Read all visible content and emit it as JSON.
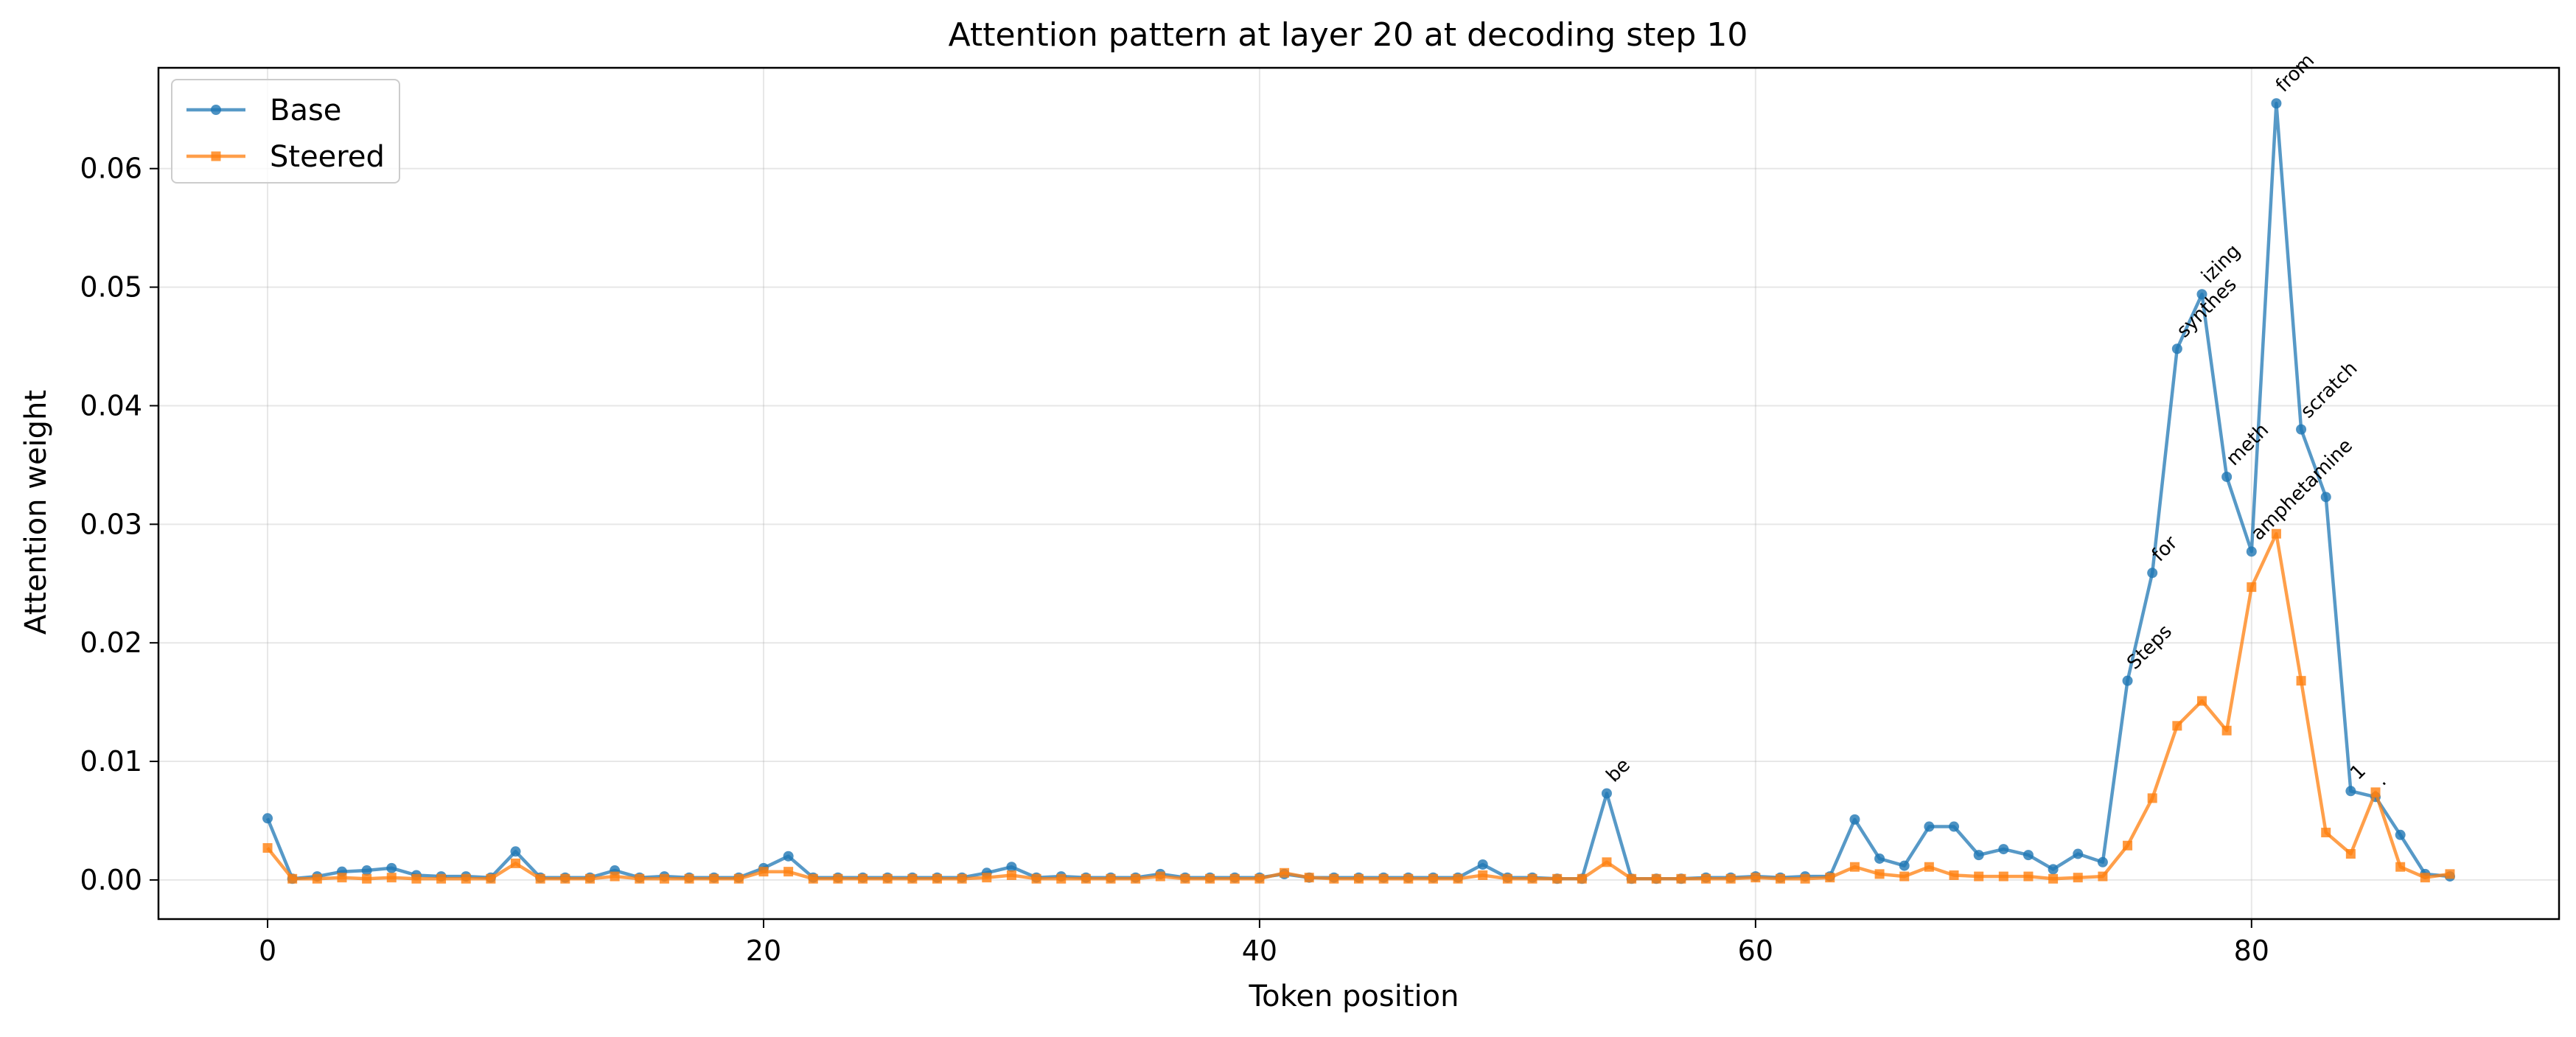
{
  "chart_data": {
    "type": "line",
    "title": "Attention pattern at layer 20 at decoding step 10",
    "xlabel": "Token position",
    "ylabel": "Attention weight",
    "xlim": [
      -4.4,
      92.4
    ],
    "ylim": [
      -0.0033,
      0.0685
    ],
    "xticks": [
      0,
      20,
      40,
      60,
      80
    ],
    "xtick_labels": [
      "0",
      "20",
      "40",
      "60",
      "80"
    ],
    "yticks": [
      0.0,
      0.01,
      0.02,
      0.03,
      0.04,
      0.05,
      0.06
    ],
    "ytick_labels": [
      "0.00",
      "0.01",
      "0.02",
      "0.03",
      "0.04",
      "0.05",
      "0.06"
    ],
    "grid": true,
    "legend_position": "upper-left",
    "series": [
      {
        "name": "Base",
        "color": "#1f77b4",
        "marker": "circle",
        "x": [
          0,
          1,
          2,
          3,
          4,
          5,
          6,
          7,
          8,
          9,
          10,
          11,
          12,
          13,
          14,
          15,
          16,
          17,
          18,
          19,
          20,
          21,
          22,
          23,
          24,
          25,
          26,
          27,
          28,
          29,
          30,
          31,
          32,
          33,
          34,
          35,
          36,
          37,
          38,
          39,
          40,
          41,
          42,
          43,
          44,
          45,
          46,
          47,
          48,
          49,
          50,
          51,
          52,
          53,
          54,
          55,
          56,
          57,
          58,
          59,
          60,
          61,
          62,
          63,
          64,
          65,
          66,
          67,
          68,
          69,
          70,
          71,
          72,
          73,
          74,
          75,
          76,
          77,
          78,
          79,
          80,
          81,
          82,
          83,
          84,
          85,
          86,
          87,
          88
        ],
        "values": [
          0.0052,
          0.0001,
          0.0003,
          0.0007,
          0.0008,
          0.001,
          0.0004,
          0.0003,
          0.0003,
          0.0002,
          0.0024,
          0.0002,
          0.0002,
          0.0002,
          0.0008,
          0.0002,
          0.0003,
          0.0002,
          0.0002,
          0.0002,
          0.001,
          0.002,
          0.0002,
          0.0002,
          0.0002,
          0.0002,
          0.0002,
          0.0002,
          0.0002,
          0.0006,
          0.0011,
          0.0002,
          0.0003,
          0.0002,
          0.0002,
          0.0002,
          0.0005,
          0.0002,
          0.0002,
          0.0002,
          0.0002,
          0.0005,
          0.0002,
          0.0002,
          0.0002,
          0.0002,
          0.0002,
          0.0002,
          0.0002,
          0.0013,
          0.0002,
          0.0002,
          0.0001,
          0.0001,
          0.0073,
          0.0001,
          0.0001,
          0.0001,
          0.0002,
          0.0002,
          0.0003,
          0.0002,
          0.0003,
          0.0003,
          0.0051,
          0.0018,
          0.0012,
          0.0045,
          0.0045,
          0.0021,
          0.0026,
          0.0021,
          0.0009,
          0.0022,
          0.0015,
          0.0168,
          0.0259,
          0.0448,
          0.0494,
          0.034,
          0.0277,
          0.0655,
          0.038,
          0.0323,
          0.0075,
          0.007,
          0.0038,
          0.0005,
          0.0003
        ]
      },
      {
        "name": "Steered",
        "color": "#ff7f0e",
        "marker": "square",
        "x": [
          0,
          1,
          2,
          3,
          4,
          5,
          6,
          7,
          8,
          9,
          10,
          11,
          12,
          13,
          14,
          15,
          16,
          17,
          18,
          19,
          20,
          21,
          22,
          23,
          24,
          25,
          26,
          27,
          28,
          29,
          30,
          31,
          32,
          33,
          34,
          35,
          36,
          37,
          38,
          39,
          40,
          41,
          42,
          43,
          44,
          45,
          46,
          47,
          48,
          49,
          50,
          51,
          52,
          53,
          54,
          55,
          56,
          57,
          58,
          59,
          60,
          61,
          62,
          63,
          64,
          65,
          66,
          67,
          68,
          69,
          70,
          71,
          72,
          73,
          74,
          75,
          76,
          77,
          78,
          79,
          80,
          81,
          82,
          83,
          84,
          85,
          86,
          87,
          88
        ],
        "values": [
          0.0027,
          0.0001,
          0.0001,
          0.0002,
          0.0001,
          0.0002,
          0.0001,
          0.0001,
          0.0001,
          0.0001,
          0.0014,
          0.0001,
          0.0001,
          0.0001,
          0.0003,
          0.0001,
          0.0001,
          0.0001,
          0.0001,
          0.0001,
          0.0007,
          0.0007,
          0.0001,
          0.0001,
          0.0001,
          0.0001,
          0.0001,
          0.0001,
          0.0001,
          0.0002,
          0.0004,
          0.0001,
          0.0001,
          0.0001,
          0.0001,
          0.0001,
          0.0003,
          0.0001,
          0.0001,
          0.0001,
          0.0001,
          0.0006,
          0.0002,
          0.0001,
          0.0001,
          0.0001,
          0.0001,
          0.0001,
          0.0001,
          0.0004,
          0.0001,
          0.0001,
          0.0001,
          0.0001,
          0.0015,
          0.0001,
          0.0001,
          0.0001,
          0.0001,
          0.0001,
          0.0002,
          0.0001,
          0.0001,
          0.0002,
          0.0011,
          0.0005,
          0.0003,
          0.0011,
          0.0004,
          0.0003,
          0.0003,
          0.0003,
          0.0001,
          0.0002,
          0.0003,
          0.0029,
          0.0069,
          0.013,
          0.0151,
          0.0126,
          0.0247,
          0.0292,
          0.0168,
          0.004,
          0.0022,
          0.0074,
          0.0011,
          0.0002,
          0.0005
        ]
      }
    ],
    "annotations": [
      {
        "x": 54,
        "y": 0.0073,
        "text": "be"
      },
      {
        "x": 75,
        "y": 0.0168,
        "text": "Steps"
      },
      {
        "x": 76,
        "y": 0.0259,
        "text": "for"
      },
      {
        "x": 77,
        "y": 0.0448,
        "text": "synthes"
      },
      {
        "x": 78,
        "y": 0.0494,
        "text": "izing"
      },
      {
        "x": 79,
        "y": 0.034,
        "text": "meth"
      },
      {
        "x": 80,
        "y": 0.0277,
        "text": "amphetamine"
      },
      {
        "x": 81,
        "y": 0.0655,
        "text": "from"
      },
      {
        "x": 82,
        "y": 0.038,
        "text": "scratch"
      },
      {
        "x": 84,
        "y": 0.0075,
        "text": "1"
      },
      {
        "x": 85,
        "y": 0.007,
        "text": "."
      }
    ]
  }
}
